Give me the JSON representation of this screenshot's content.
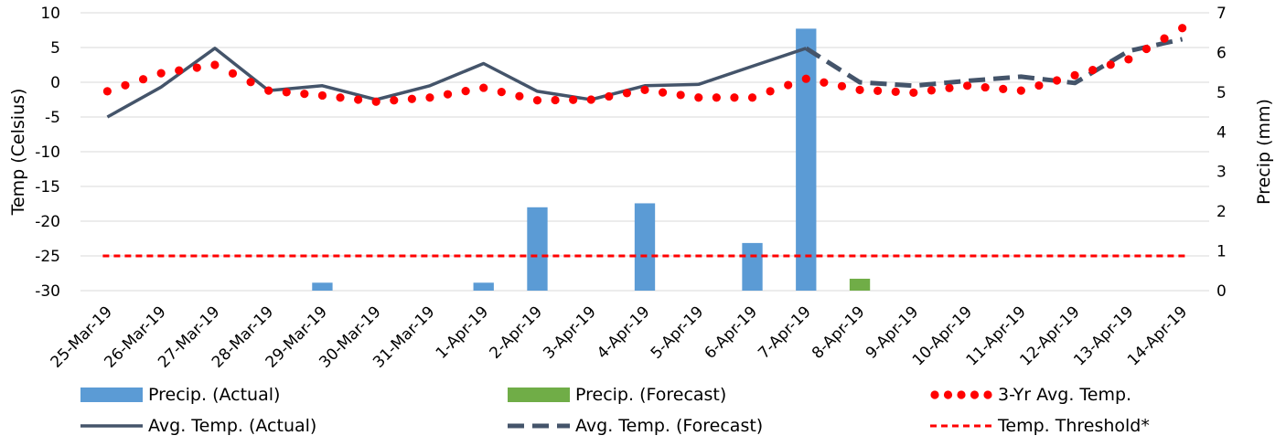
{
  "chart_data": {
    "type": "bar+line",
    "categories": [
      "25-Mar-19",
      "26-Mar-19",
      "27-Mar-19",
      "28-Mar-19",
      "29-Mar-19",
      "30-Mar-19",
      "31-Mar-19",
      "1-Apr-19",
      "2-Apr-19",
      "3-Apr-19",
      "4-Apr-19",
      "5-Apr-19",
      "6-Apr-19",
      "7-Apr-19",
      "8-Apr-19",
      "9-Apr-19",
      "10-Apr-19",
      "11-Apr-19",
      "12-Apr-19",
      "13-Apr-19",
      "14-Apr-19"
    ],
    "y_left": {
      "label": "Temp (Celsius)",
      "min": -30,
      "max": 10,
      "ticks": [
        10,
        5,
        0,
        -5,
        -10,
        -15,
        -20,
        -25,
        -30
      ]
    },
    "y_right": {
      "label": "Precip (mm)",
      "min": 0,
      "max": 7,
      "ticks": [
        7,
        6,
        5,
        4,
        3,
        2,
        1,
        0
      ]
    },
    "gridlines": true,
    "legend_position": "bottom",
    "series": [
      {
        "name": "Precip. (Actual)",
        "kind": "bar",
        "axis": "right",
        "color": "#5B9BD5",
        "values": [
          0,
          0,
          0,
          0,
          0.2,
          0,
          0,
          0.2,
          2.1,
          0,
          2.2,
          0,
          1.2,
          6.6,
          null,
          null,
          null,
          null,
          null,
          null,
          null
        ]
      },
      {
        "name": "Precip. (Forecast)",
        "kind": "bar",
        "axis": "right",
        "color": "#70AD47",
        "values": [
          null,
          null,
          null,
          null,
          null,
          null,
          null,
          null,
          null,
          null,
          null,
          null,
          null,
          null,
          0.3,
          0,
          0,
          0,
          0,
          0,
          0
        ]
      },
      {
        "name": "3-Yr Avg. Temp.",
        "kind": "dotted-line",
        "axis": "left",
        "color": "#FF0000",
        "values": [
          -1.3,
          1.3,
          2.5,
          -1.2,
          -1.9,
          -2.8,
          -2.2,
          -0.8,
          -2.6,
          -2.5,
          -1.1,
          -2.2,
          -2.2,
          0.5,
          -1.1,
          -1.5,
          -0.5,
          -1.2,
          1.0,
          3.3,
          7.8
        ]
      },
      {
        "name": "Avg. Temp. (Actual)",
        "kind": "line",
        "axis": "left",
        "color": "#44546A",
        "values": [
          -5.0,
          -0.7,
          4.9,
          -1.2,
          -0.5,
          -2.5,
          -0.5,
          2.7,
          -1.3,
          -2.5,
          -0.5,
          -0.3,
          2.3,
          4.9,
          null,
          null,
          null,
          null,
          null,
          null,
          null
        ]
      },
      {
        "name": "Avg. Temp. (Forecast)",
        "kind": "dashed-line",
        "axis": "left",
        "color": "#44546A",
        "values": [
          null,
          null,
          null,
          null,
          null,
          null,
          null,
          null,
          null,
          null,
          null,
          null,
          null,
          4.9,
          0.0,
          -0.5,
          0.2,
          0.8,
          -0.1,
          4.5,
          6.2
        ]
      },
      {
        "name": "Temp. Threshold*",
        "kind": "dashed-line",
        "axis": "left",
        "color": "#FF0000",
        "values": [
          -25,
          -25,
          -25,
          -25,
          -25,
          -25,
          -25,
          -25,
          -25,
          -25,
          -25,
          -25,
          -25,
          -25,
          -25,
          -25,
          -25,
          -25,
          -25,
          -25,
          -25
        ]
      }
    ]
  }
}
